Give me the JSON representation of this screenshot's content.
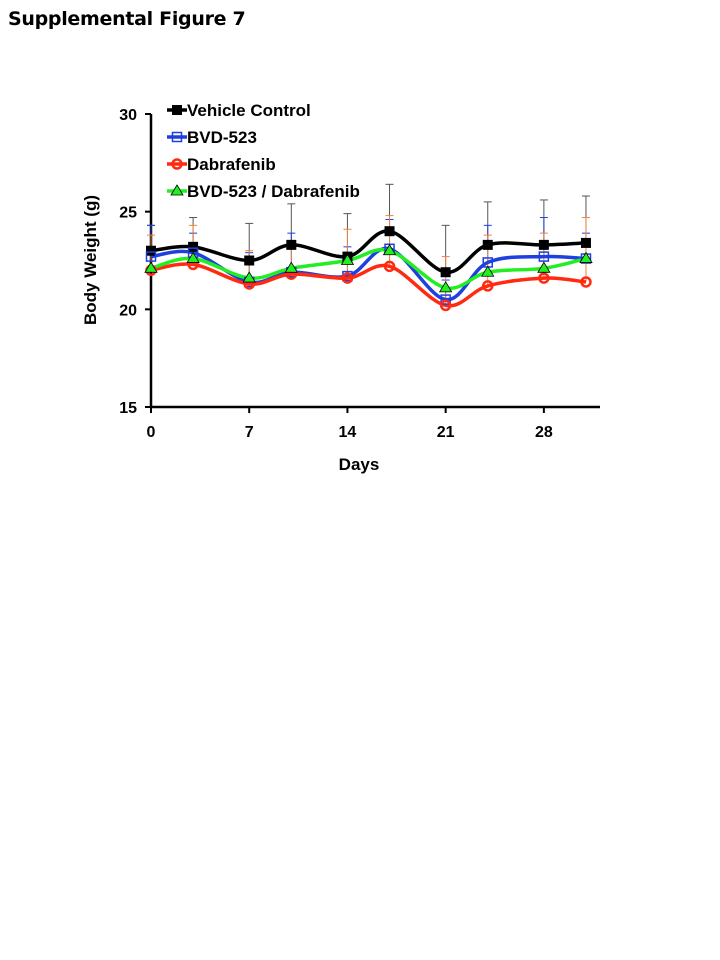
{
  "figure_title": "Supplemental Figure 7",
  "chart_data": {
    "type": "line",
    "title": "",
    "xlabel": "Days",
    "ylabel": "Body Weight (g)",
    "xlim": [
      0,
      32
    ],
    "ylim": [
      15,
      30
    ],
    "xticks": [
      0,
      7,
      14,
      21,
      28
    ],
    "yticks": [
      15,
      20,
      25,
      30
    ],
    "grid": false,
    "legend_placement": "top-left",
    "x": [
      0,
      3,
      7,
      10,
      14,
      17,
      21,
      24,
      28,
      31
    ],
    "series": [
      {
        "name": "Vehicle Control",
        "color": "#000000",
        "errcolor": "#555555",
        "marker": "square-filled",
        "values": [
          23.0,
          23.2,
          22.5,
          23.3,
          22.7,
          24.0,
          21.9,
          23.3,
          23.3,
          23.4
        ],
        "sd": [
          1.3,
          1.5,
          1.9,
          2.1,
          2.2,
          2.4,
          2.4,
          2.2,
          2.3,
          2.4
        ]
      },
      {
        "name": "BVD-523",
        "color": "#1f3fe0",
        "errcolor": "#1f3fe0",
        "marker": "square-open",
        "values": [
          22.7,
          22.9,
          21.4,
          21.9,
          21.7,
          23.1,
          20.5,
          22.4,
          22.7,
          22.6
        ],
        "sd": [
          1.6,
          1.0,
          1.5,
          2.0,
          1.5,
          1.5,
          1.0,
          1.9,
          2.0,
          1.3
        ]
      },
      {
        "name": "Dabrafenib",
        "color": "#ff2a10",
        "errcolor": "#f08040",
        "marker": "circle-open",
        "values": [
          22.0,
          22.3,
          21.3,
          21.8,
          21.6,
          22.2,
          20.2,
          21.2,
          21.6,
          21.4
        ],
        "sd": [
          1.8,
          2.0,
          1.7,
          1.7,
          2.5,
          2.6,
          2.5,
          2.6,
          2.3,
          3.3
        ]
      },
      {
        "name": "BVD-523 / Dabrafenib",
        "color": "#22ee22",
        "errcolor": "#22ee22",
        "marker": "triangle-filled",
        "values": [
          22.1,
          22.6,
          21.6,
          22.1,
          22.5,
          23.0,
          21.1,
          21.9,
          22.1,
          22.6
        ],
        "sd": []
      }
    ]
  }
}
